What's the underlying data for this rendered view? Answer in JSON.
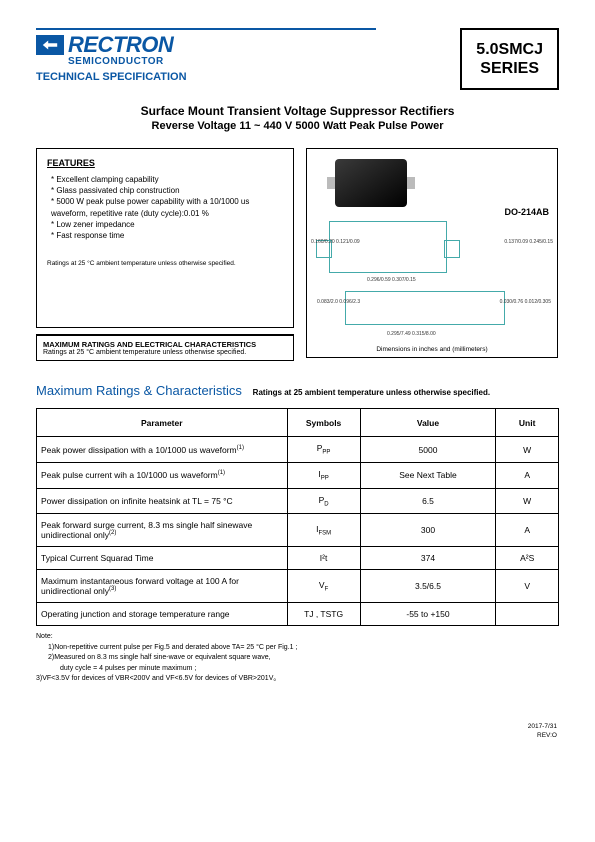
{
  "header": {
    "brand": "RECTRON",
    "brand_sub": "SEMICONDUCTOR",
    "tech_spec": "TECHNICAL SPECIFICATION",
    "series_line1": "5.0SMCJ",
    "series_line2": "SERIES"
  },
  "title": {
    "line1": "Surface Mount Transient Voltage Suppressor Rectifiers",
    "line2": "Reverse Voltage 11 ~ 440 V  5000 Watt Peak Pulse Power"
  },
  "features": {
    "heading": "FEATURES",
    "items": [
      "Excellent clamping capability",
      "Glass passivated chip construction",
      "5000 W peak pulse power capability with a 10/1000 us waveform, repetitive rate (duty cycle):0.01 %",
      "Low zener impedance",
      "Fast response time"
    ],
    "ratings_note": "Ratings at 25 °C ambient temperature unless otherwise specified.",
    "max_title": "MAXIMUM RATINGS AND ELECTRICAL CHARACTERISTICS",
    "max_sub": "Ratings at 25 °C ambient temperature unless otherwise specified."
  },
  "package": {
    "label": "DO-214AB",
    "dim_note": "Dimensions in inches and (millimeters)",
    "dims": {
      "d1": "0.160/0.20\n0.121/0.09",
      "d2": "0.137/0.09\n0.245/0.15",
      "d3": "0.296/0.59\n0.307/0.15",
      "d4": "0.083/2.0\n0.096/2.3",
      "d5": "0.295/7.49\n0.315/8.00",
      "d6": "0.030/0.76\n0.012/0.305",
      "d7": "0.006/0.152\n0.012/0.305"
    }
  },
  "ratings_section": {
    "title": "Maximum Ratings & Characteristics",
    "subtitle": "Ratings at 25   ambient temperature unless otherwise specified."
  },
  "table": {
    "headers": [
      "Parameter",
      "Symbols",
      "Value",
      "Unit"
    ],
    "rows": [
      {
        "param": "Peak power dissipation with a 10/1000 us waveform",
        "note": "(1)",
        "sym": "P",
        "sub": "PP",
        "val": "5000",
        "unit": "W"
      },
      {
        "param": "Peak pulse current wih a 10/1000 us waveform",
        "note": "(1)",
        "sym": "I",
        "sub": "PP",
        "val": "See Next Table",
        "unit": "A"
      },
      {
        "param": "Power dissipation on infinite heatsink at TL = 75 °C",
        "note": "",
        "sym": "P",
        "sub": "D",
        "val": "6.5",
        "unit": "W"
      },
      {
        "param": "Peak forward surge current, 8.3 ms single half sinewave unidirectional only",
        "note": "(2)",
        "sym": "I",
        "sub": "FSM",
        "val": "300",
        "unit": "A"
      },
      {
        "param": "Typical Current Squarad Time",
        "note": "",
        "sym": "I²t",
        "sub": "",
        "val": "374",
        "unit": "A²S"
      },
      {
        "param": "Maximum instantaneous forward voltage at 100 A for unidirectional only",
        "note": "(3)",
        "sym": "V",
        "sub": "F",
        "val": "3.5/6.5",
        "unit": "V"
      },
      {
        "param": "Operating junction and storage temperature range",
        "note": "",
        "sym": "TJ , TSTG",
        "sub": "",
        "val": "-55 to +150",
        "unit": ""
      }
    ]
  },
  "notes": {
    "heading": "Note:",
    "n1": "1)Non-repetitive current pulse per Fig.5 and derated above TA= 25 °C per Fig.1 ;",
    "n2": "2)Measured on 8.3 ms single half sine-wave or equivalent square wave,",
    "n2b": "   duty cycle = 4 pulses per minute maximum ;",
    "n3": "3)VF<3.5V for devices of VBR<200V and VF<6.5V for devices of VBR>201V。"
  },
  "footer": {
    "date": "2017-7/31",
    "rev": "REV:O"
  },
  "colors": {
    "brand": "#0a57a4",
    "border": "#000000",
    "pkg_line": "#44aaaa"
  }
}
